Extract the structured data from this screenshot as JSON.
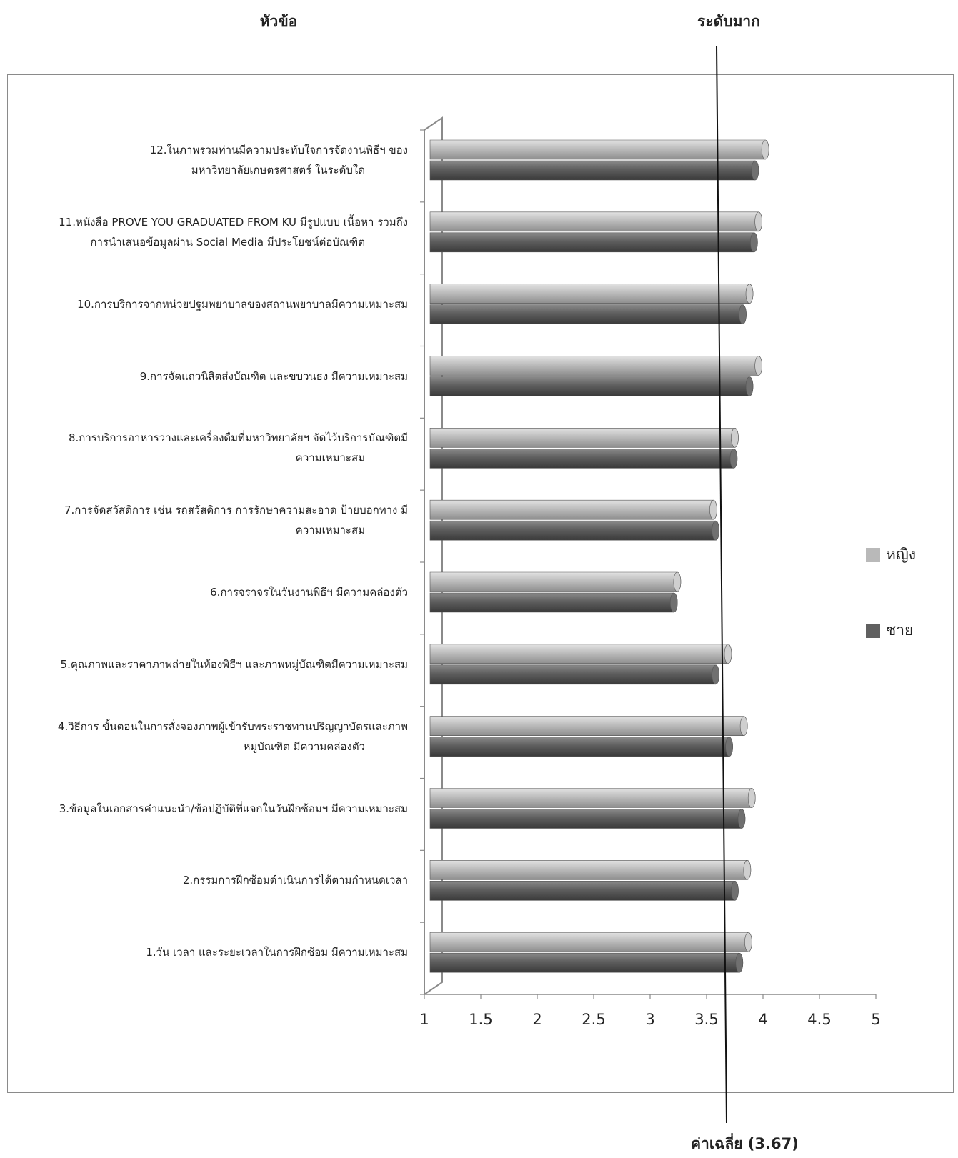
{
  "header": {
    "left": "หัวข้อ",
    "right": "ระดับมาก"
  },
  "avg_label": "ค่าเฉลี่ย (3.67)",
  "chart_data": {
    "type": "bar",
    "orientation": "horizontal",
    "categories": [
      [
        "12.ในภาพรวมท่านมีความประทับใจการจัดงานพิธีฯ ของ",
        "มหาวิทยาลัยเกษตรศาสตร์ ในระดับใด"
      ],
      [
        "11.หนังสือ PROVE YOU GRADUATED FROM KU มีรูปแบบ เนื้อหา รวมถึง",
        "การนำเสนอข้อมูลผ่าน Social Media มีประโยชน์ต่อบัณฑิต"
      ],
      [
        "10.การบริการจากหน่วยปฐมพยาบาลของสถานพยาบาลมีความเหมาะสม"
      ],
      [
        "9.การจัดแถวนิสิตส่งบัณฑิต และขบวนธง มีความเหมาะสม"
      ],
      [
        "8.การบริการอาหารว่างและเครื่องดื่มที่มหาวิทยาลัยฯ จัดไว้บริการบัณฑิตมี",
        "ความเหมาะสม"
      ],
      [
        "7.การจัดสวัสดิการ เช่น รถสวัสดิการ การรักษาความสะอาด ป้ายบอกทาง มี",
        "ความเหมาะสม"
      ],
      [
        "6.การจราจรในวันงานพิธีฯ มีความคล่องตัว"
      ],
      [
        "5.คุณภาพและราคาภาพถ่ายในห้องพิธีฯ และภาพหมู่บัณฑิตมีความเหมาะสม"
      ],
      [
        "4.วิธีการ ขั้นตอนในการสั่งจองภาพผู้เข้ารับพระราชทานปริญญาบัตรและภาพ",
        "หมู่บัณฑิต มีความคล่องตัว"
      ],
      [
        "3.ข้อมูลในเอกสารคำแนะนำ/ข้อปฏิบัติที่แจกในวันฝึกซ้อมฯ มีความเหมาะสม"
      ],
      [
        "2.กรรมการฝึกซ้อมดำเนินการได้ตามกำหนดเวลา"
      ],
      [
        "1.วัน เวลา และระยะเวลาในการฝึกซ้อม มีความเหมาะสม"
      ]
    ],
    "series": [
      {
        "name": "หญิง",
        "color": "#b9b9b9",
        "values": [
          4.02,
          3.96,
          3.88,
          3.96,
          3.75,
          3.56,
          3.24,
          3.69,
          3.83,
          3.9,
          3.86,
          3.87
        ]
      },
      {
        "name": "ชาย",
        "color": "#606060",
        "values": [
          3.93,
          3.92,
          3.82,
          3.88,
          3.74,
          3.58,
          3.21,
          3.58,
          3.7,
          3.81,
          3.75,
          3.79
        ]
      }
    ],
    "xlim": [
      1,
      5
    ],
    "xticks": [
      "1",
      "1.5",
      "2",
      "2.5",
      "3",
      "3.5",
      "4",
      "4.5",
      "5"
    ],
    "reference_value": 3.67,
    "legend_position": "right",
    "grid": false
  }
}
